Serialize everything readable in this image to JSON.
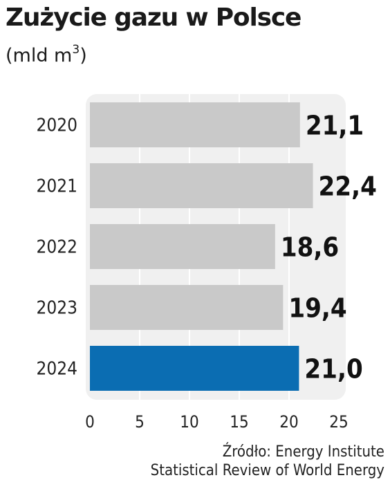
{
  "chart_data": {
    "type": "bar",
    "orientation": "horizontal",
    "title": "Zużycie gazu w Polsce",
    "unit_prefix": "(mld m",
    "unit_superscript": "3",
    "unit_suffix": ")",
    "categories": [
      "2020",
      "2021",
      "2022",
      "2023",
      "2024"
    ],
    "values": [
      21.1,
      22.4,
      18.6,
      19.4,
      21.0
    ],
    "value_labels": [
      "21,1",
      "22,4",
      "18,6",
      "19,4",
      "21,0"
    ],
    "highlight_category": "2024",
    "xlim": [
      0,
      25
    ],
    "xticks": [
      "0",
      "5",
      "10",
      "15",
      "20",
      "25"
    ],
    "grid": true,
    "colors": {
      "bar": "#c9c9c9",
      "highlight": "#0b6db2",
      "background_panel": "#f0f0f0",
      "grid": "#ffffff"
    }
  },
  "source": {
    "line1": "Źródło: Energy Institute",
    "line2": "Statistical Review of World Energy"
  }
}
